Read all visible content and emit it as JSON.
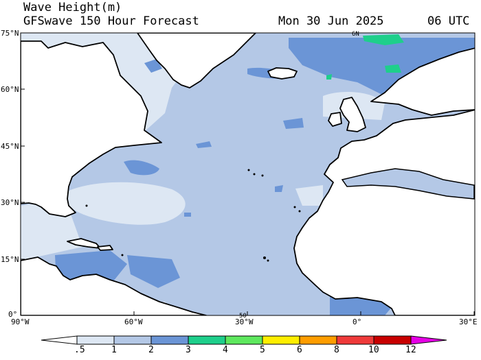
{
  "header": {
    "title": "Wave Height(m)",
    "model": "GFSwave 150 Hour Forecast",
    "date": "Mon 30 Jun 2025",
    "time": "06 UTC"
  },
  "axes": {
    "lat_labels": [
      "75°N",
      "60°N",
      "45°N",
      "30°N",
      "15°N",
      "0°"
    ],
    "lon_labels": [
      "90°W",
      "60°W",
      "30°W",
      "0°",
      "30°E"
    ]
  },
  "map_marks": {
    "contour_label_a": "6N",
    "contour_label_b": "50"
  },
  "colorbar": {
    "labels": [
      ".5",
      "1",
      "2",
      "3",
      "4",
      "5",
      "6",
      "8",
      "10",
      "12"
    ],
    "colors": [
      "#ffffff",
      "#dde7f3",
      "#b4c8e6",
      "#6b95d6",
      "#1ecf8b",
      "#5ee85e",
      "#ffee00",
      "#ff9d00",
      "#ef3a3a",
      "#c80000",
      "#e600e6"
    ]
  },
  "map_style": {
    "land_color": "#ffffff",
    "coast_color": "#000000",
    "band_lt1_color": "#dde7f3",
    "band_1_2_color": "#b4c8e6",
    "band_2_3_color": "#6b95d6",
    "band_3_4_color": "#1ecf8b"
  }
}
